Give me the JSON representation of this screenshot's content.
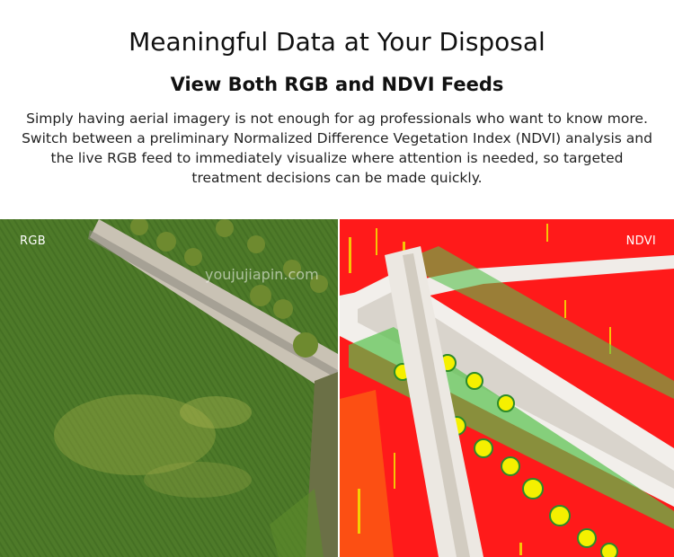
{
  "header": {
    "title": "Meaningful Data at Your Disposal",
    "subtitle": "View Both RGB and NDVI Feeds",
    "description": "Simply having aerial imagery is not enough for ag professionals who want to know more. Switch between a preliminary Normalized Difference Vegetation Index (NDVI) analysis and the live RGB feed to immediately visualize where attention is needed, so targeted treatment decisions can be made quickly."
  },
  "panels": {
    "rgb_label": "RGB",
    "ndvi_label": "NDVI"
  },
  "watermark": "youjujiapin.com",
  "colors": {
    "field_green": "#4f7a2a",
    "ndvi_red": "#ff1a1a",
    "ndvi_yellow": "#f5f000",
    "road": "#c9c2b4"
  }
}
